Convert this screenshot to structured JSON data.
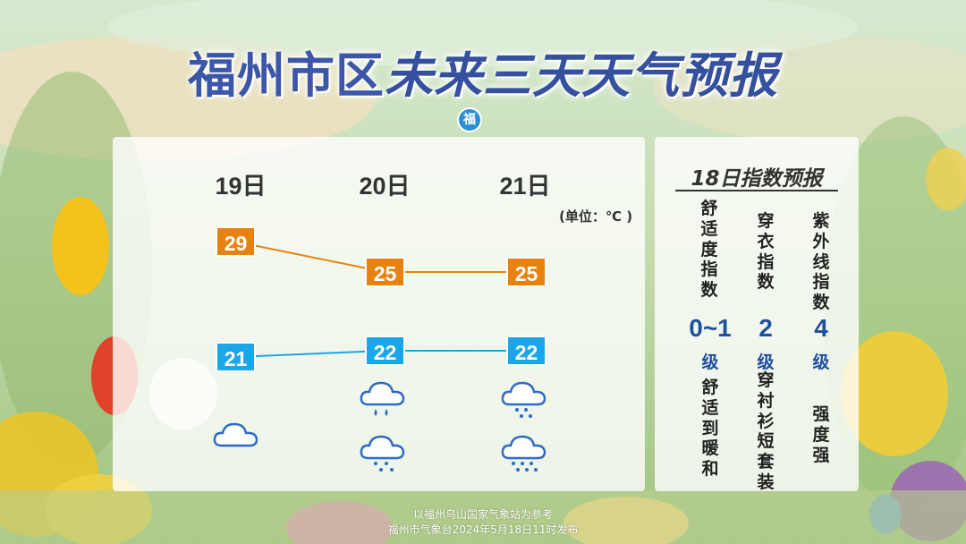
{
  "title": {
    "part1": "福州市区",
    "part2": "未来三天天气预报"
  },
  "logo_text": "福",
  "forecast": {
    "unit": "(单位：℃ )",
    "days": [
      {
        "label": "19日",
        "high": "29",
        "low": "21",
        "icons": [
          "cloudy-icon"
        ]
      },
      {
        "label": "20日",
        "high": "25",
        "low": "22",
        "icons": [
          "rain-cloud-icon",
          "rain-cloud-icon"
        ]
      },
      {
        "label": "21日",
        "high": "25",
        "low": "22",
        "icons": [
          "rain-cloud-icon",
          "heavy-rain-cloud-icon"
        ]
      }
    ],
    "colors": {
      "high": "#e8820e",
      "low": "#1aa6ea"
    }
  },
  "index": {
    "title": "18日指数预报",
    "items": [
      {
        "name": "舒适度指数",
        "value": "0~1",
        "level": "级",
        "desc": "舒适到暖和"
      },
      {
        "name": "穿衣指数",
        "value": "2",
        "level": "级",
        "desc": "穿衬衫短套装"
      },
      {
        "name": "紫外线指数",
        "value": "4",
        "level": "级",
        "desc": "强度强"
      }
    ]
  },
  "footer": {
    "line1": "以福州乌山国家气象站为参考",
    "line2": "福州市气象台2024年5月18日11时发布"
  }
}
